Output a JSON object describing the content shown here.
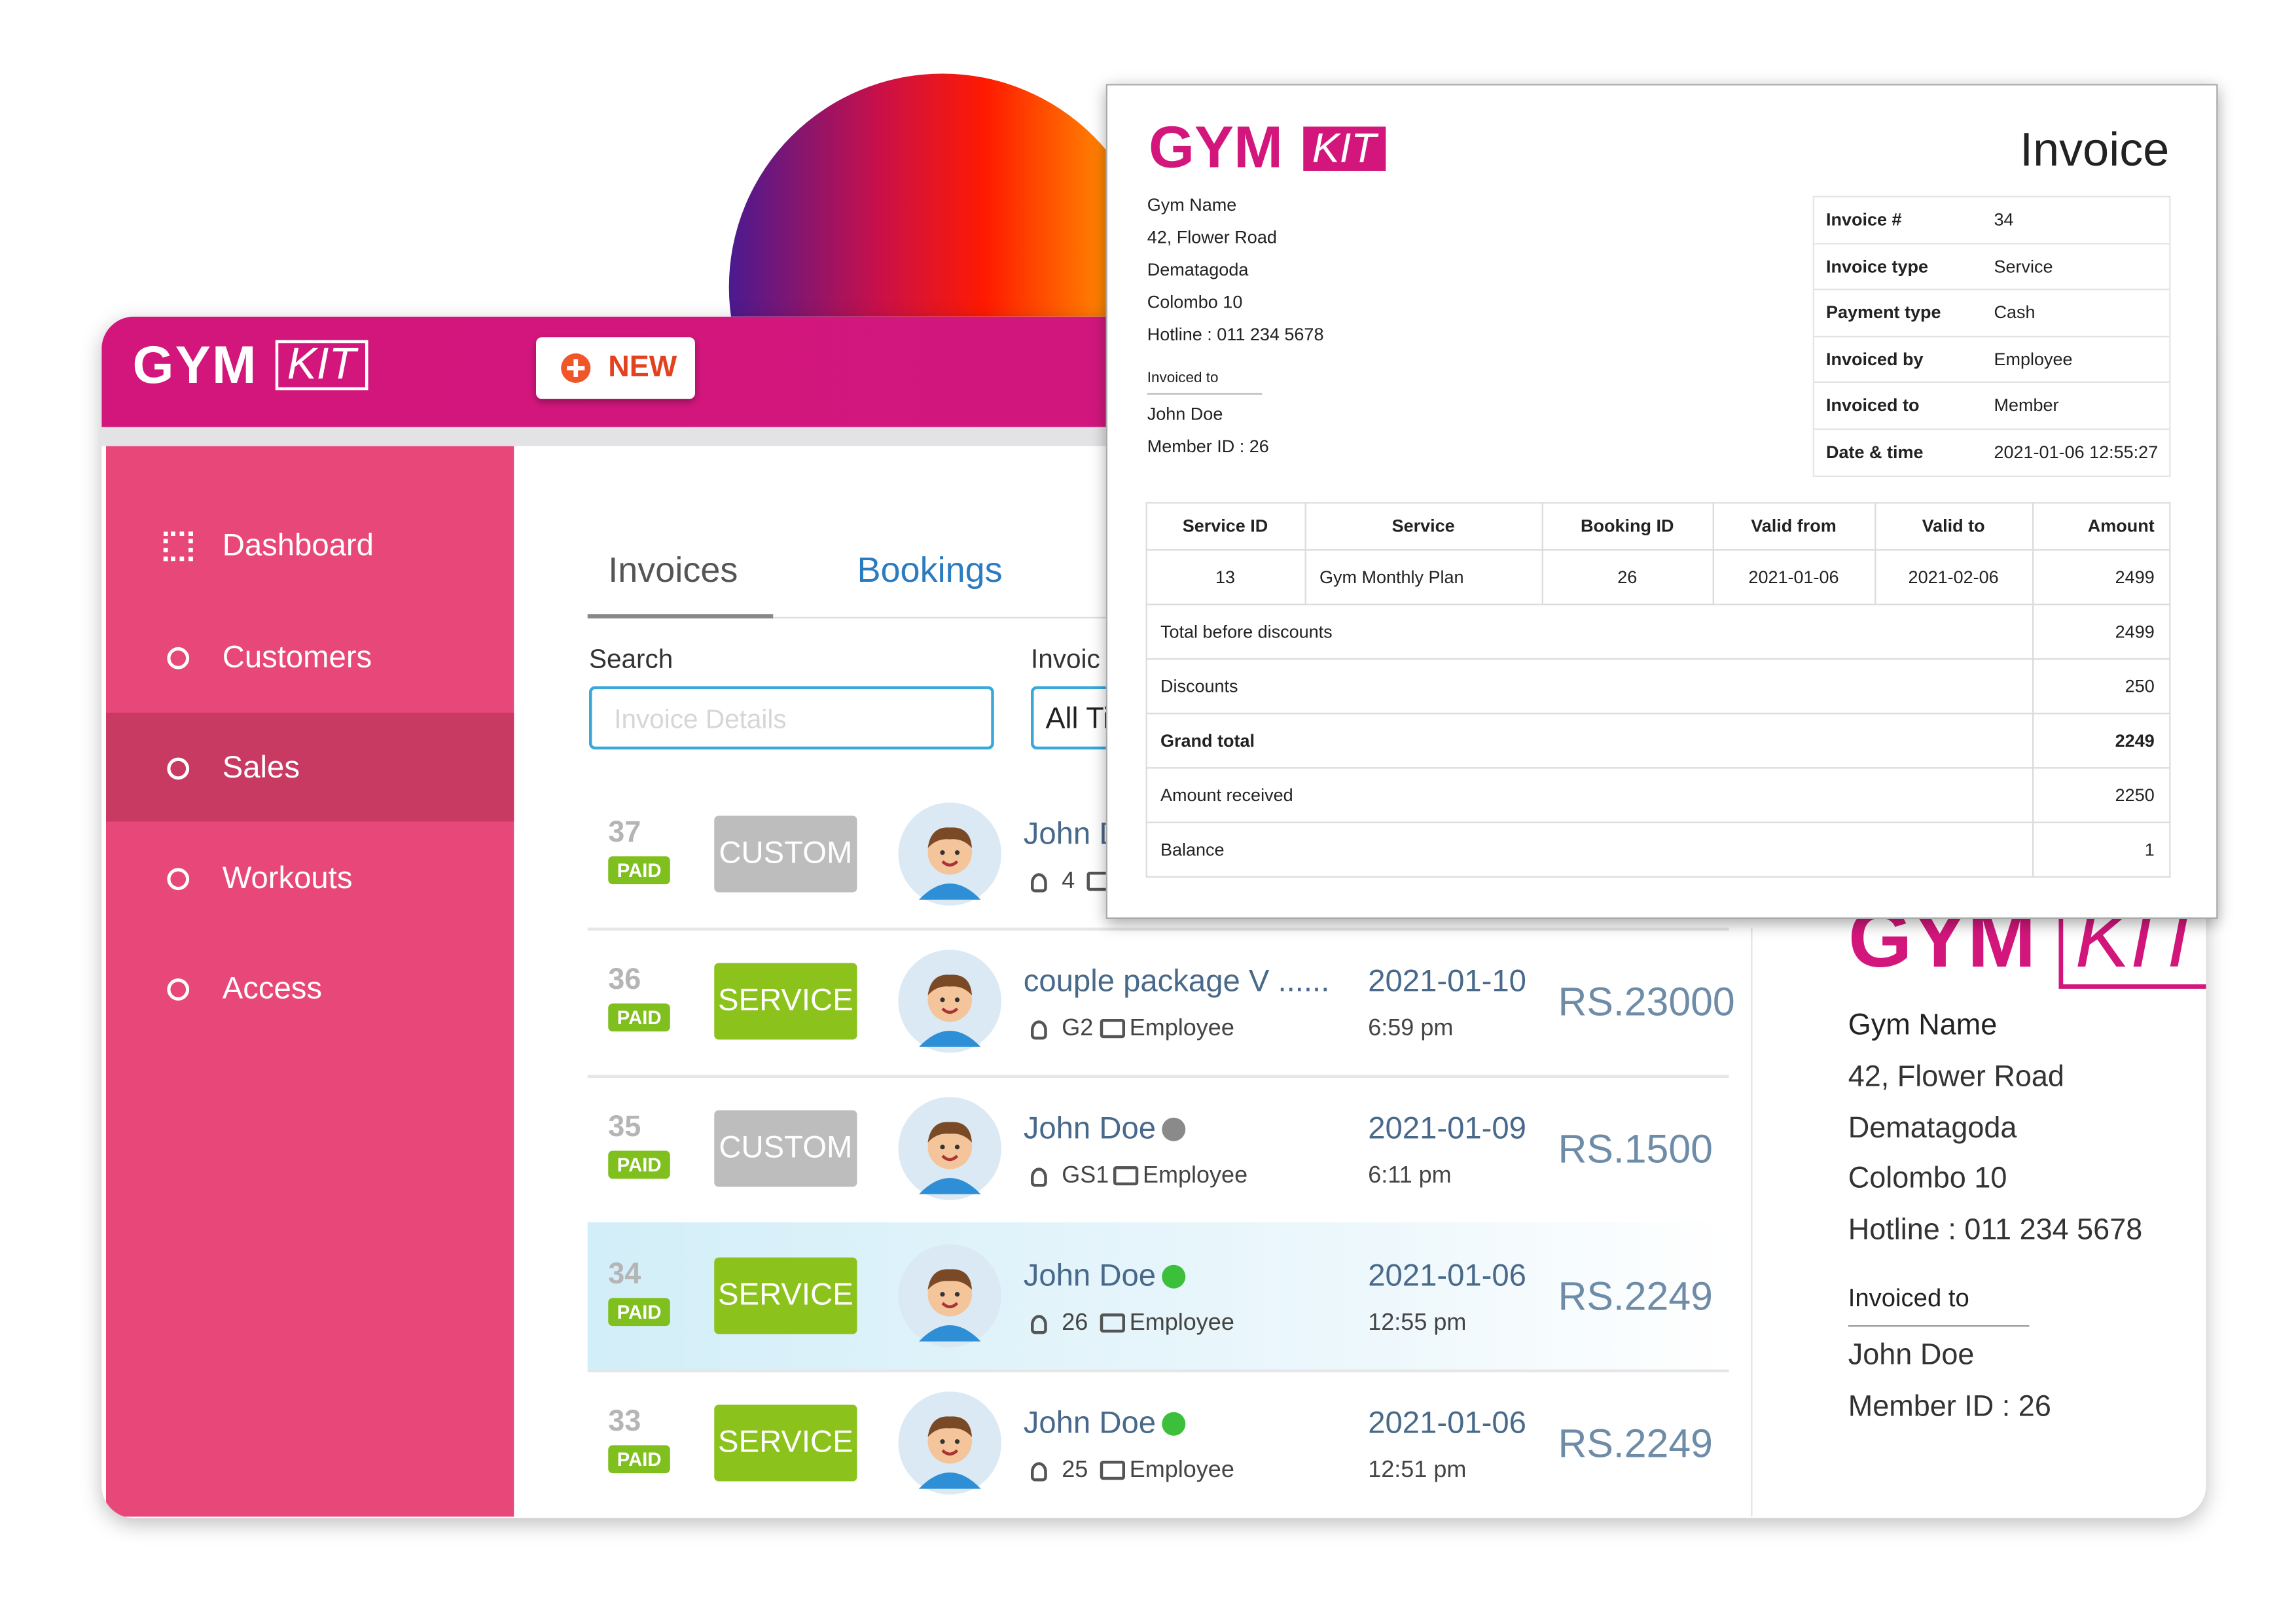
{
  "app": {
    "logo": {
      "gym": "GYM",
      "kit": "KIT"
    },
    "new_button": "NEW",
    "nav": [
      "Dashboard",
      "Customers",
      "Sales",
      "Workouts",
      "Access"
    ],
    "tabs": [
      "Invoices",
      "Bookings"
    ],
    "search": {
      "label": "Search",
      "placeholder": "Invoice Details"
    },
    "filter": {
      "label": "Invoic",
      "value": "All Ti"
    },
    "rows": [
      {
        "id": "37",
        "status": "PAID",
        "type": "CUSTOM",
        "name": "John Doe",
        "ref": "4"
      },
      {
        "id": "36",
        "status": "PAID",
        "type": "SERVICE",
        "name": "couple package V ......",
        "ref": "G2",
        "role": "Employee",
        "date": "2021-01-10",
        "time": "6:59 pm",
        "amount": "RS.23000"
      },
      {
        "id": "35",
        "status": "PAID",
        "type": "CUSTOM",
        "name": "John Doe",
        "dot_color": "#8a8a8a",
        "ref": "GS1",
        "role": "Employee",
        "date": "2021-01-09",
        "time": "6:11 pm",
        "amount": "RS.1500"
      },
      {
        "id": "34",
        "status": "PAID",
        "type": "SERVICE",
        "name": "John Doe",
        "dot_color": "#3cc03c",
        "ref": "26",
        "role": "Employee",
        "date": "2021-01-06",
        "time": "12:55 pm",
        "amount": "RS.2249"
      },
      {
        "id": "33",
        "status": "PAID",
        "type": "SERVICE",
        "name": "John Doe",
        "dot_color": "#3cc03c",
        "ref": "25",
        "role": "Employee",
        "date": "2021-01-06",
        "time": "12:51 pm",
        "amount": "RS.2249"
      }
    ],
    "preview": {
      "gym_name": "Gym Name",
      "address": [
        "42, Flower Road",
        "Dematagoda",
        "Colombo 10",
        "Hotline : 011 234 5678"
      ],
      "invoiced_to_label": "Invoiced to",
      "customer": "John Doe",
      "member_id": "Member ID : 26"
    }
  },
  "invoice": {
    "logo": {
      "gym": "GYM",
      "kit": "KIT"
    },
    "title": "Invoice",
    "gym_name": "Gym Name",
    "address": [
      "42, Flower Road",
      "Dematagoda",
      "Colombo 10",
      "Hotline : 011 234 5678"
    ],
    "invoiced_to_label": "Invoiced to",
    "customer": "John Doe",
    "member_id": "Member ID : 26",
    "meta": [
      [
        "Invoice #",
        "34"
      ],
      [
        "Invoice type",
        "Service"
      ],
      [
        "Payment type",
        "Cash"
      ],
      [
        "Invoiced by",
        "Employee"
      ],
      [
        "Invoiced to",
        "Member"
      ],
      [
        "Date & time",
        "2021-01-06 12:55:27"
      ]
    ],
    "columns": [
      "Service ID",
      "Service",
      "Booking ID",
      "Valid from",
      "Valid to",
      "Amount"
    ],
    "items": [
      [
        "13",
        "Gym Monthly Plan",
        "26",
        "2021-01-06",
        "2021-02-06",
        "2499"
      ]
    ],
    "totals": [
      [
        "Total before discounts",
        "2499"
      ],
      [
        "Discounts",
        "250"
      ],
      [
        "Grand total",
        "2249"
      ],
      [
        "Amount received",
        "2250"
      ],
      [
        "Balance",
        "1"
      ]
    ]
  }
}
